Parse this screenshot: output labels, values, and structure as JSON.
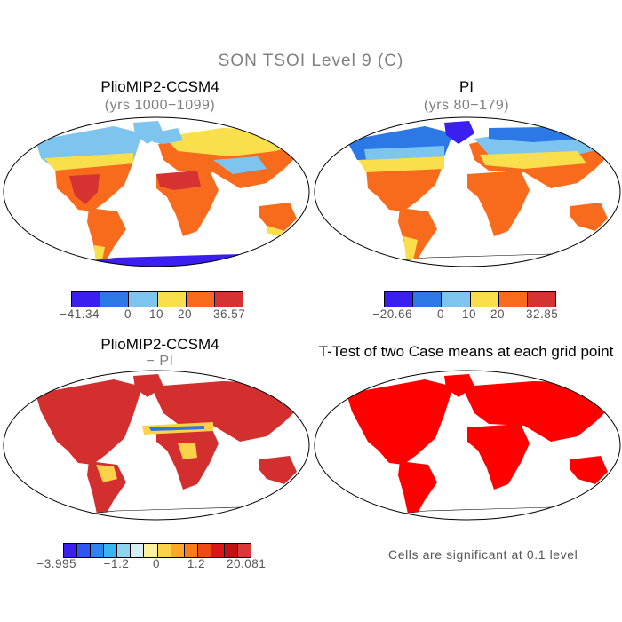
{
  "main_title": "SON TSOI Level 9 (C)",
  "panels": [
    {
      "title": "PlioMIP2-CCSM4",
      "subtitle": "(yrs 1000−1099)"
    },
    {
      "title": "PI",
      "subtitle": "(yrs 80−179)"
    },
    {
      "title": "PlioMIP2-CCSM4",
      "subtitle": "− PI"
    },
    {
      "title": "T-Test of two Case means at each grid point",
      "subtitle": ""
    }
  ],
  "colorbars": [
    {
      "colors": [
        "#3b1ef0",
        "#2c78e6",
        "#7dc4ee",
        "#f9df4b",
        "#f96b1c",
        "#d63232"
      ],
      "labels": [
        "−41.34",
        "0",
        "10",
        "20",
        "36.57"
      ]
    },
    {
      "colors": [
        "#3b1ef0",
        "#2c78e6",
        "#7dc4ee",
        "#f9df4b",
        "#f96b1c",
        "#d63232"
      ],
      "labels": [
        "−20.66",
        "0",
        "10",
        "20",
        "32.85"
      ]
    },
    {
      "colors": [
        "#3b1ef0",
        "#2e55f0",
        "#2f84ee",
        "#38b4f0",
        "#8ed4f0",
        "#d4eef4",
        "#fdf0a0",
        "#fcd24a",
        "#fba828",
        "#f97b1a",
        "#ee4a16",
        "#d81818",
        "#bf1212",
        "#d83838"
      ],
      "labels": [
        "−3.995",
        "−1.2",
        "0",
        "1.2",
        "20.081"
      ]
    }
  ],
  "significance_note": "Cells are significant at 0.1 level",
  "map_colors": {
    "cold": "#3b1ef0",
    "cool": "#2c78e6",
    "mild": "#7dc4ee",
    "warm": "#f9df4b",
    "hot": "#f96b1c",
    "veryhot": "#d63232",
    "diff_red": "#d32f2f",
    "diff_blue": "#2c78e6",
    "diff_yellow": "#fcd24a",
    "ttest_red": "#ff0000"
  }
}
